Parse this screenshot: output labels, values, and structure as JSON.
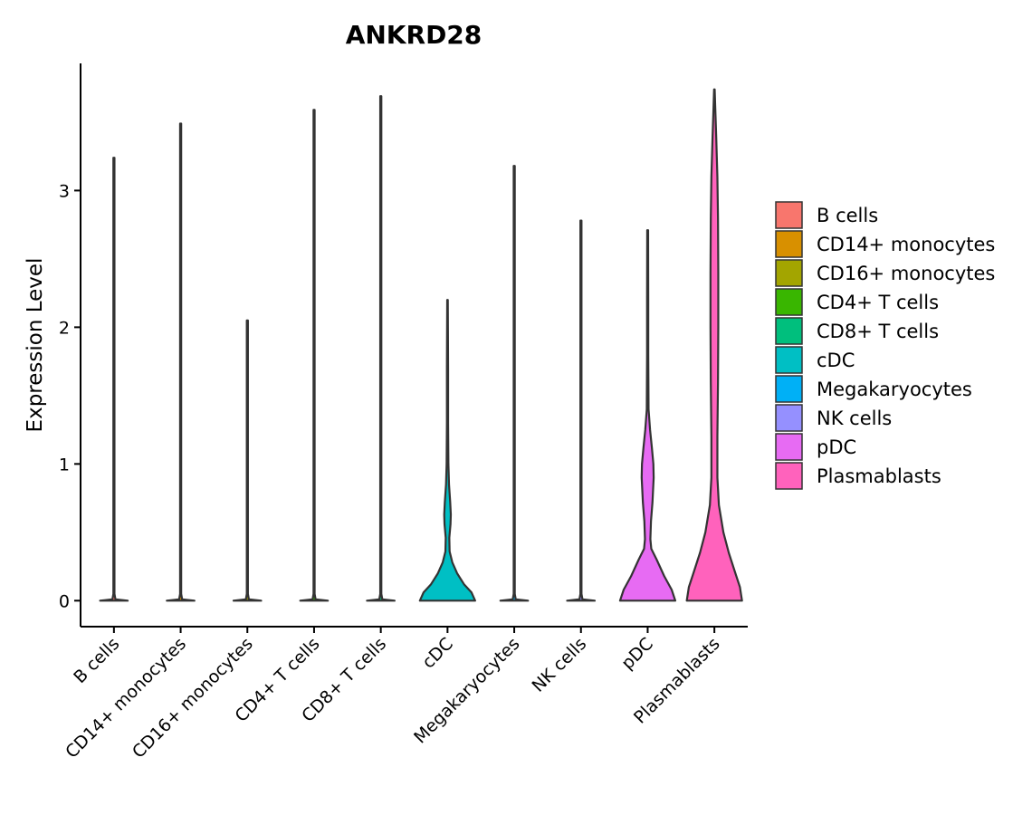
{
  "chart_data": {
    "type": "violin",
    "title": "ANKRD28",
    "xlabel": "",
    "ylabel": "Expression Level",
    "ylim": [
      -0.19,
      3.93
    ],
    "yticks": [
      0,
      1,
      2,
      3
    ],
    "grid": false,
    "legend_position": "right",
    "categories": [
      "B cells",
      "CD14+ monocytes",
      "CD16+ monocytes",
      "CD4+ T cells",
      "CD8+ T cells",
      "cDC",
      "Megakaryocytes",
      "NK cells",
      "pDC",
      "Plasmablasts"
    ],
    "colors": [
      "#F8766D",
      "#D89000",
      "#A3A500",
      "#39B600",
      "#00BF7D",
      "#00BFC4",
      "#00B0F6",
      "#9590FF",
      "#E76BF3",
      "#FF62BC"
    ],
    "max_values": [
      3.24,
      3.49,
      2.05,
      3.59,
      3.69,
      2.2,
      3.18,
      2.78,
      2.71,
      3.74
    ],
    "density_profiles": [
      [
        [
          0,
          0.46
        ],
        [
          0.01,
          0.05
        ],
        [
          0.05,
          0.018
        ],
        [
          3.24,
          0.018
        ]
      ],
      [
        [
          0,
          0.46
        ],
        [
          0.01,
          0.05
        ],
        [
          0.05,
          0.018
        ],
        [
          3.49,
          0.018
        ]
      ],
      [
        [
          0,
          0.46
        ],
        [
          0.01,
          0.05
        ],
        [
          0.05,
          0.018
        ],
        [
          2.05,
          0.018
        ]
      ],
      [
        [
          0,
          0.46
        ],
        [
          0.01,
          0.05
        ],
        [
          0.05,
          0.018
        ],
        [
          3.59,
          0.018
        ]
      ],
      [
        [
          0,
          0.46
        ],
        [
          0.01,
          0.05
        ],
        [
          0.05,
          0.018
        ],
        [
          3.69,
          0.018
        ]
      ],
      [
        [
          0,
          0.92
        ],
        [
          0.06,
          0.8
        ],
        [
          0.12,
          0.55
        ],
        [
          0.2,
          0.32
        ],
        [
          0.28,
          0.16
        ],
        [
          0.36,
          0.07
        ],
        [
          0.46,
          0.06
        ],
        [
          0.56,
          0.1
        ],
        [
          0.63,
          0.11
        ],
        [
          0.72,
          0.09
        ],
        [
          0.85,
          0.05
        ],
        [
          1.0,
          0.03
        ],
        [
          1.3,
          0.02
        ],
        [
          1.7,
          0.02
        ],
        [
          2.2,
          0.01
        ]
      ],
      [
        [
          0,
          0.46
        ],
        [
          0.01,
          0.05
        ],
        [
          0.05,
          0.018
        ],
        [
          3.18,
          0.018
        ]
      ],
      [
        [
          0,
          0.46
        ],
        [
          0.01,
          0.05
        ],
        [
          0.05,
          0.018
        ],
        [
          2.78,
          0.018
        ]
      ],
      [
        [
          0,
          0.92
        ],
        [
          0.08,
          0.8
        ],
        [
          0.18,
          0.55
        ],
        [
          0.3,
          0.3
        ],
        [
          0.38,
          0.12
        ],
        [
          0.45,
          0.09
        ],
        [
          0.58,
          0.11
        ],
        [
          0.72,
          0.16
        ],
        [
          0.9,
          0.2
        ],
        [
          1.0,
          0.19
        ],
        [
          1.12,
          0.14
        ],
        [
          1.25,
          0.08
        ],
        [
          1.4,
          0.03
        ],
        [
          1.8,
          0.02
        ],
        [
          2.2,
          0.02
        ],
        [
          2.71,
          0.015
        ]
      ],
      [
        [
          0,
          0.92
        ],
        [
          0.1,
          0.85
        ],
        [
          0.2,
          0.7
        ],
        [
          0.35,
          0.48
        ],
        [
          0.5,
          0.3
        ],
        [
          0.7,
          0.15
        ],
        [
          0.9,
          0.1
        ],
        [
          1.2,
          0.1
        ],
        [
          1.6,
          0.12
        ],
        [
          2.0,
          0.13
        ],
        [
          2.4,
          0.13
        ],
        [
          2.8,
          0.12
        ],
        [
          3.1,
          0.1
        ],
        [
          3.4,
          0.06
        ],
        [
          3.6,
          0.03
        ],
        [
          3.74,
          0.01
        ]
      ]
    ]
  }
}
